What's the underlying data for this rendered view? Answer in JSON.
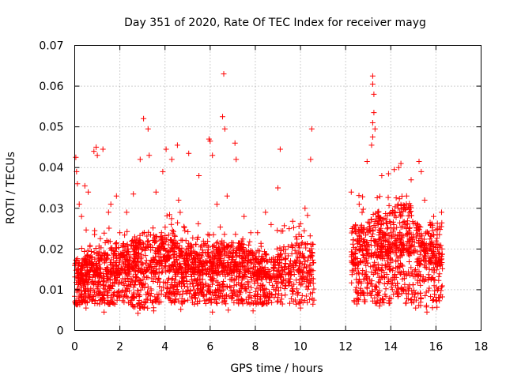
{
  "chart_data": {
    "type": "scatter",
    "title": "Day 351 of 2020, Rate Of TEC Index for receiver mayg",
    "xlabel": "GPS time / hours",
    "ylabel": "ROTI / TECUs",
    "xlim": [
      0,
      18
    ],
    "ylim": [
      0,
      0.07
    ],
    "x_ticks": [
      0,
      2,
      4,
      6,
      8,
      10,
      12,
      14,
      16,
      18
    ],
    "x_tick_labels": [
      "0",
      "2",
      "4",
      "6",
      "8",
      "10",
      "12",
      "14",
      "16",
      "18"
    ],
    "y_ticks": [
      0,
      0.01,
      0.02,
      0.03,
      0.04,
      0.05,
      0.06,
      0.07
    ],
    "y_tick_labels": [
      "0",
      "0.01",
      "0.02",
      "0.03",
      "0.04",
      "0.05",
      "0.06",
      "0.07"
    ],
    "grid": true,
    "marker": "+",
    "marker_color": "#ff0000",
    "data_gaps_hours": [
      [
        10.6,
        12.2
      ]
    ],
    "series": [
      {
        "name": "ROTI",
        "points": [
          [
            0.05,
            0.0425
          ],
          [
            0.08,
            0.039
          ],
          [
            0.12,
            0.036
          ],
          [
            0.2,
            0.031
          ],
          [
            0.3,
            0.028
          ],
          [
            0.45,
            0.0355
          ],
          [
            0.6,
            0.034
          ],
          [
            0.85,
            0.044
          ],
          [
            0.95,
            0.045
          ],
          [
            1.0,
            0.043
          ],
          [
            1.25,
            0.0445
          ],
          [
            1.5,
            0.029
          ],
          [
            1.6,
            0.031
          ],
          [
            1.85,
            0.033
          ],
          [
            2.0,
            0.024
          ],
          [
            2.3,
            0.029
          ],
          [
            2.6,
            0.0335
          ],
          [
            2.9,
            0.042
          ],
          [
            3.05,
            0.052
          ],
          [
            3.25,
            0.0495
          ],
          [
            3.3,
            0.043
          ],
          [
            3.6,
            0.034
          ],
          [
            3.9,
            0.039
          ],
          [
            4.05,
            0.0445
          ],
          [
            4.3,
            0.042
          ],
          [
            4.55,
            0.0455
          ],
          [
            4.6,
            0.032
          ],
          [
            5.05,
            0.0435
          ],
          [
            5.5,
            0.038
          ],
          [
            5.95,
            0.047
          ],
          [
            6.0,
            0.0465
          ],
          [
            6.1,
            0.043
          ],
          [
            6.3,
            0.031
          ],
          [
            6.55,
            0.0525
          ],
          [
            6.6,
            0.063
          ],
          [
            6.65,
            0.0495
          ],
          [
            6.75,
            0.033
          ],
          [
            7.1,
            0.046
          ],
          [
            7.15,
            0.042
          ],
          [
            7.5,
            0.028
          ],
          [
            7.8,
            0.024
          ],
          [
            8.1,
            0.024
          ],
          [
            8.45,
            0.029
          ],
          [
            8.7,
            0.026
          ],
          [
            9.0,
            0.035
          ],
          [
            9.1,
            0.0445
          ],
          [
            9.5,
            0.025
          ],
          [
            9.8,
            0.023
          ],
          [
            10.2,
            0.03
          ],
          [
            10.45,
            0.042
          ],
          [
            10.5,
            0.0495
          ],
          [
            12.25,
            0.034
          ],
          [
            12.6,
            0.031
          ],
          [
            12.95,
            0.0415
          ],
          [
            13.2,
            0.0625
          ],
          [
            13.2,
            0.0605
          ],
          [
            13.25,
            0.058
          ],
          [
            13.25,
            0.0535
          ],
          [
            13.2,
            0.051
          ],
          [
            13.3,
            0.0495
          ],
          [
            13.2,
            0.0475
          ],
          [
            13.15,
            0.0455
          ],
          [
            13.6,
            0.038
          ],
          [
            13.9,
            0.0385
          ],
          [
            14.15,
            0.0395
          ],
          [
            14.35,
            0.04
          ],
          [
            14.45,
            0.041
          ],
          [
            14.7,
            0.033
          ],
          [
            14.9,
            0.037
          ],
          [
            15.25,
            0.0415
          ],
          [
            15.35,
            0.039
          ],
          [
            15.5,
            0.032
          ],
          [
            15.9,
            0.028
          ],
          [
            16.25,
            0.029
          ],
          [
            0.5,
            0.0055
          ],
          [
            1.3,
            0.0045
          ],
          [
            2.8,
            0.0042
          ],
          [
            3.5,
            0.0048
          ],
          [
            4.7,
            0.0052
          ],
          [
            6.1,
            0.0045
          ],
          [
            6.8,
            0.005
          ],
          [
            7.9,
            0.0048
          ],
          [
            9.2,
            0.0065
          ],
          [
            10.0,
            0.0055
          ],
          [
            12.5,
            0.0065
          ],
          [
            13.5,
            0.006
          ],
          [
            15.1,
            0.0055
          ],
          [
            15.6,
            0.0045
          ]
        ],
        "bands": [
          {
            "x": [
              0.0,
              0.5
            ],
            "y": [
              0.006,
              0.024
            ],
            "center": 0.012,
            "n": 140
          },
          {
            "x": [
              0.5,
              1.5
            ],
            "y": [
              0.006,
              0.026
            ],
            "center": 0.013,
            "n": 230
          },
          {
            "x": [
              1.5,
              2.5
            ],
            "y": [
              0.006,
              0.026
            ],
            "center": 0.014,
            "n": 220
          },
          {
            "x": [
              2.5,
              3.5
            ],
            "y": [
              0.005,
              0.028
            ],
            "center": 0.014,
            "n": 230
          },
          {
            "x": [
              3.5,
              4.5
            ],
            "y": [
              0.006,
              0.03
            ],
            "center": 0.015,
            "n": 230
          },
          {
            "x": [
              4.5,
              5.5
            ],
            "y": [
              0.006,
              0.03
            ],
            "center": 0.014,
            "n": 230
          },
          {
            "x": [
              5.5,
              6.5
            ],
            "y": [
              0.006,
              0.028
            ],
            "center": 0.014,
            "n": 230
          },
          {
            "x": [
              6.5,
              7.5
            ],
            "y": [
              0.006,
              0.026
            ],
            "center": 0.014,
            "n": 230
          },
          {
            "x": [
              7.5,
              8.5
            ],
            "y": [
              0.006,
              0.024
            ],
            "center": 0.013,
            "n": 210
          },
          {
            "x": [
              8.5,
              8.95
            ],
            "y": [
              0.006,
              0.022
            ],
            "center": 0.012,
            "n": 60
          },
          {
            "x": [
              8.95,
              9.35
            ],
            "y": [
              0.006,
              0.03
            ],
            "center": 0.013,
            "n": 80
          },
          {
            "x": [
              9.45,
              10.6
            ],
            "y": [
              0.006,
              0.03
            ],
            "center": 0.014,
            "n": 180
          },
          {
            "x": [
              12.25,
              13.0
            ],
            "y": [
              0.006,
              0.034
            ],
            "center": 0.016,
            "n": 170
          },
          {
            "x": [
              13.0,
              14.0
            ],
            "y": [
              0.006,
              0.036
            ],
            "center": 0.018,
            "n": 240
          },
          {
            "x": [
              14.0,
              15.0
            ],
            "y": [
              0.006,
              0.036
            ],
            "center": 0.019,
            "n": 240
          },
          {
            "x": [
              15.0,
              16.3
            ],
            "y": [
              0.005,
              0.032
            ],
            "center": 0.016,
            "n": 260
          }
        ]
      }
    ]
  }
}
